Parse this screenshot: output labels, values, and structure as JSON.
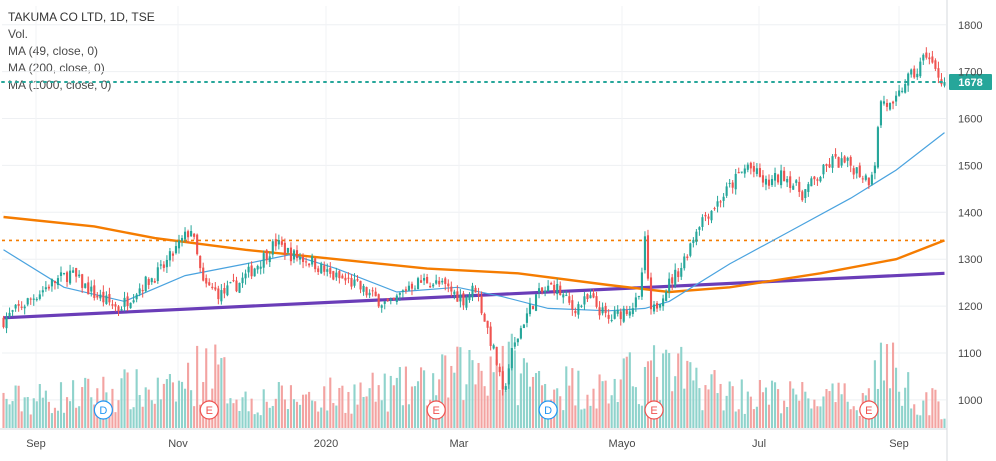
{
  "legend": {
    "title": "TAKUMA CO LTD, 1D, TSE",
    "vol": "Vol.",
    "ma49": "MA (49, close, 0)",
    "ma200": "MA (200, close, 0)",
    "ma1000": "MA (1000, close, 0)"
  },
  "colors": {
    "up": "#26a69a",
    "down": "#ef5350",
    "vol_up": "#8fd3cc",
    "vol_down": "#f3a3a1",
    "ma49": "#4aa3df",
    "ma200": "#f57c00",
    "ma1000": "#6a3db8",
    "price_line": "#26a69a",
    "resistance": "#f57c00"
  },
  "chart_data": {
    "type": "candlestick",
    "ylim": [
      940,
      1840
    ],
    "y_ticks": [
      "1800",
      "1700",
      "1600",
      "1500",
      "1400",
      "1300",
      "1200",
      "1100",
      "1000"
    ],
    "x_ticks": [
      "Sep",
      "Nov",
      "2020",
      "Mar",
      "Mayo",
      "Jul",
      "Sep"
    ],
    "last_price": "1678",
    "resistance_level": 1340,
    "price_path": [
      [
        0,
        1170
      ],
      [
        8,
        1210
      ],
      [
        15,
        1245
      ],
      [
        22,
        1270
      ],
      [
        30,
        1225
      ],
      [
        38,
        1195
      ],
      [
        45,
        1240
      ],
      [
        52,
        1275
      ],
      [
        58,
        1330
      ],
      [
        62,
        1365
      ],
      [
        66,
        1245
      ],
      [
        72,
        1225
      ],
      [
        78,
        1250
      ],
      [
        84,
        1290
      ],
      [
        90,
        1335
      ],
      [
        95,
        1310
      ],
      [
        102,
        1295
      ],
      [
        108,
        1265
      ],
      [
        115,
        1250
      ],
      [
        122,
        1220
      ],
      [
        128,
        1200
      ],
      [
        134,
        1245
      ],
      [
        140,
        1255
      ],
      [
        146,
        1240
      ],
      [
        152,
        1215
      ],
      [
        156,
        1240
      ],
      [
        160,
        1150
      ],
      [
        163,
        1080
      ],
      [
        165,
        1010
      ],
      [
        168,
        1100
      ],
      [
        172,
        1170
      ],
      [
        176,
        1220
      ],
      [
        182,
        1245
      ],
      [
        188,
        1195
      ],
      [
        194,
        1215
      ],
      [
        200,
        1170
      ],
      [
        206,
        1195
      ],
      [
        210,
        1210
      ],
      [
        212,
        1335
      ],
      [
        214,
        1180
      ],
      [
        218,
        1230
      ],
      [
        224,
        1285
      ],
      [
        230,
        1380
      ],
      [
        236,
        1420
      ],
      [
        242,
        1470
      ],
      [
        246,
        1500
      ],
      [
        252,
        1460
      ],
      [
        258,
        1480
      ],
      [
        264,
        1440
      ],
      [
        270,
        1480
      ],
      [
        274,
        1510
      ],
      [
        280,
        1500
      ],
      [
        286,
        1470
      ],
      [
        288,
        1510
      ],
      [
        290,
        1640
      ],
      [
        294,
        1620
      ],
      [
        298,
        1680
      ],
      [
        302,
        1700
      ],
      [
        305,
        1740
      ],
      [
        308,
        1700
      ],
      [
        311,
        1678
      ]
    ],
    "ma49": [
      [
        0,
        1320
      ],
      [
        20,
        1240
      ],
      [
        40,
        1210
      ],
      [
        60,
        1265
      ],
      [
        80,
        1290
      ],
      [
        95,
        1310
      ],
      [
        110,
        1280
      ],
      [
        130,
        1230
      ],
      [
        150,
        1240
      ],
      [
        165,
        1220
      ],
      [
        180,
        1195
      ],
      [
        200,
        1190
      ],
      [
        212,
        1195
      ],
      [
        220,
        1210
      ],
      [
        240,
        1290
      ],
      [
        260,
        1360
      ],
      [
        280,
        1430
      ],
      [
        295,
        1490
      ],
      [
        311,
        1570
      ]
    ],
    "ma200": [
      [
        0,
        1390
      ],
      [
        30,
        1370
      ],
      [
        50,
        1345
      ],
      [
        80,
        1320
      ],
      [
        110,
        1300
      ],
      [
        140,
        1280
      ],
      [
        170,
        1270
      ],
      [
        200,
        1245
      ],
      [
        220,
        1230
      ],
      [
        240,
        1240
      ],
      [
        270,
        1270
      ],
      [
        295,
        1300
      ],
      [
        311,
        1340
      ]
    ],
    "ma1000": [
      [
        0,
        1175
      ],
      [
        311,
        1270
      ]
    ],
    "volume_peaks": [
      [
        0,
        0.4
      ],
      [
        20,
        0.45
      ],
      [
        40,
        0.55
      ],
      [
        55,
        0.5
      ],
      [
        68,
        0.9
      ],
      [
        80,
        0.4
      ],
      [
        100,
        0.45
      ],
      [
        120,
        0.5
      ],
      [
        140,
        0.6
      ],
      [
        152,
        0.8
      ],
      [
        164,
        1.0
      ],
      [
        176,
        0.65
      ],
      [
        200,
        0.55
      ],
      [
        212,
        0.8
      ],
      [
        224,
        0.75
      ],
      [
        240,
        0.5
      ],
      [
        260,
        0.45
      ],
      [
        285,
        0.4
      ],
      [
        290,
        1.0
      ],
      [
        300,
        0.5
      ],
      [
        311,
        0.3
      ]
    ],
    "events": [
      "D",
      "E",
      "E",
      "D",
      "E",
      "E"
    ],
    "event_days": [
      33,
      68,
      143,
      180,
      215,
      286
    ]
  }
}
